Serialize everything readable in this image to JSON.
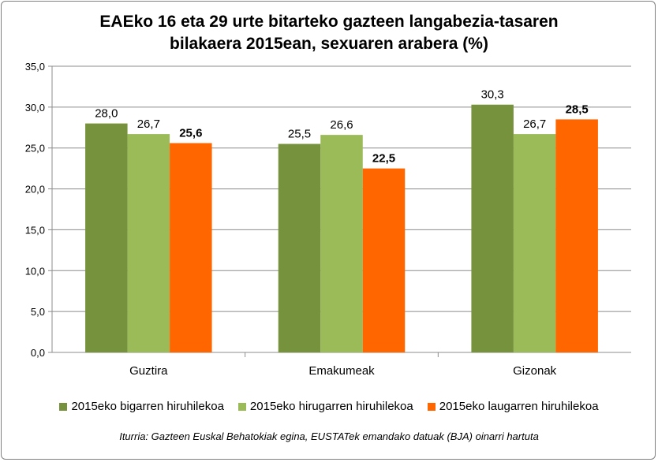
{
  "chart_data": {
    "type": "bar",
    "title_lines": [
      "EAEko 16 eta 29 urte bitarteko gazteen langabezia-tasaren",
      "bilakaera 2015ean, sexuaren arabera   (%)"
    ],
    "categories": [
      "Guztira",
      "Emakumeak",
      "Gizonak"
    ],
    "series": [
      {
        "name": "2015eko bigarren hiruhilekoa",
        "color": "#76923c",
        "values": [
          28.0,
          25.5,
          30.3
        ],
        "labels": [
          "28,0",
          "25,5",
          "30,3"
        ],
        "label_bold": false
      },
      {
        "name": "2015eko hirugarren hiruhilekoa",
        "color": "#9bbb59",
        "values": [
          26.7,
          26.6,
          26.7
        ],
        "labels": [
          "26,7",
          "26,6",
          "26,7"
        ],
        "label_bold": false
      },
      {
        "name": "2015eko laugarren hiruhilekoa",
        "color": "#ff6600",
        "values": [
          25.6,
          22.5,
          28.5
        ],
        "labels": [
          "25,6",
          "22,5",
          "28,5"
        ],
        "label_bold": true
      }
    ],
    "ylim": [
      0,
      35
    ],
    "yticks": [
      "0,0",
      "5,0",
      "10,0",
      "15,0",
      "20,0",
      "25,0",
      "30,0",
      "35,0"
    ],
    "grid": true,
    "legend_position": "bottom",
    "source": "Iturria: Gazteen Euskal Behatokiak egina, EUSTATek emandako datuak (BJA) oinarri hartuta"
  }
}
